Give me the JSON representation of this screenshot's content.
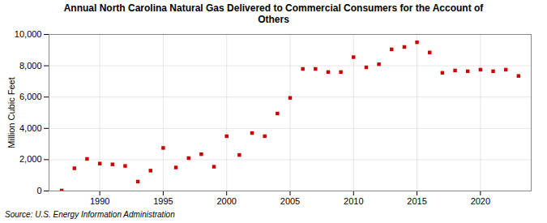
{
  "chart_data": {
    "type": "scatter",
    "title": "Annual North Carolina Natural Gas Delivered to Commercial Consumers for the Account of\nOthers",
    "ylabel": "Million Cubic Feet",
    "source": "Source: U.S. Energy Information Administration",
    "x": [
      1987,
      1988,
      1989,
      1990,
      1991,
      1992,
      1993,
      1994,
      1995,
      1996,
      1997,
      1998,
      1999,
      2000,
      2001,
      2002,
      2003,
      2004,
      2005,
      2006,
      2007,
      2008,
      2009,
      2010,
      2011,
      2012,
      2013,
      2014,
      2015,
      2016,
      2017,
      2018,
      2019,
      2020,
      2021,
      2022,
      2023
    ],
    "values": [
      30,
      1450,
      2050,
      1750,
      1700,
      1600,
      600,
      1300,
      2750,
      1500,
      2100,
      2350,
      1550,
      3500,
      2300,
      3700,
      3500,
      4950,
      5950,
      7800,
      7800,
      7600,
      7600,
      8550,
      7900,
      8100,
      9050,
      9200,
      9500,
      8850,
      7550,
      7700,
      7650,
      7750,
      7650,
      7750,
      7350
    ],
    "color": "#cc0000",
    "marker": "square",
    "xlim": [
      1986,
      2024
    ],
    "ylim": [
      0,
      10000
    ],
    "xticks": [
      1990,
      1995,
      2000,
      2005,
      2010,
      2015,
      2020
    ],
    "yticks": [
      0,
      {
        "value": 2000,
        "label": "2,000"
      },
      {
        "value": 4000,
        "label": "4,000"
      },
      {
        "value": 6000,
        "label": "6,000"
      },
      {
        "value": 8000,
        "label": "8,000"
      },
      {
        "value": 10000,
        "label": "10,000"
      }
    ],
    "grid": true
  }
}
